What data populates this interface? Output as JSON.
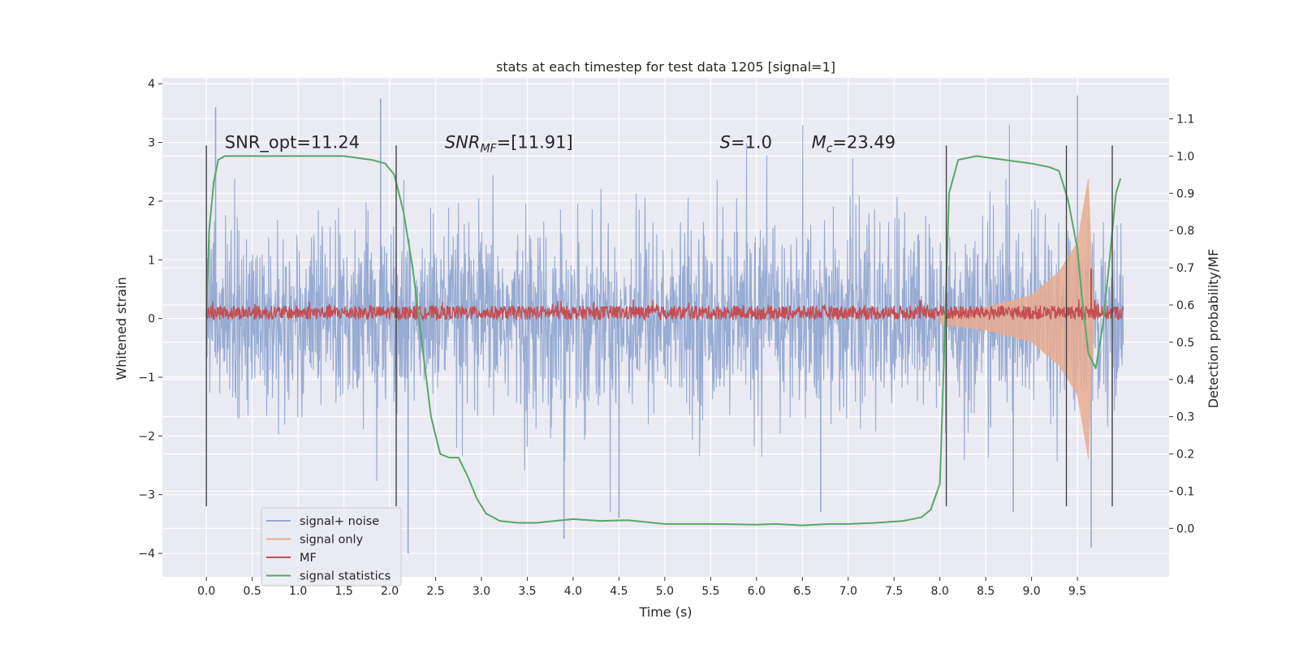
{
  "chart_data": {
    "type": "line",
    "title": "stats at each timestep for test data 1205 [signal=1]",
    "xlabel": "Time (s)",
    "ylabel": "Whitened strain",
    "y2label": "Detection probability/MF",
    "xlim": [
      -0.48,
      10.5
    ],
    "ylim": [
      -4.4,
      4.1
    ],
    "y2lim": [
      -0.13,
      1.21
    ],
    "xticks": [
      0.0,
      0.5,
      1.0,
      1.5,
      2.0,
      2.5,
      3.0,
      3.5,
      4.0,
      4.5,
      5.0,
      5.5,
      6.0,
      6.5,
      7.0,
      7.5,
      8.0,
      8.5,
      9.0,
      9.5
    ],
    "xtick_labels": [
      "0.0",
      "0.5",
      "1.0",
      "1.5",
      "2.0",
      "2.5",
      "3.0",
      "3.5",
      "4.0",
      "4.5",
      "5.0",
      "5.5",
      "6.0",
      "6.5",
      "7.0",
      "7.5",
      "8.0",
      "8.5",
      "9.0",
      "9.5"
    ],
    "yticks": [
      -4,
      -3,
      -2,
      -1,
      0,
      1,
      2,
      3,
      4
    ],
    "ytick_labels": [
      "−4",
      "−3",
      "−2",
      "−1",
      "0",
      "1",
      "2",
      "3",
      "4"
    ],
    "y2ticks": [
      0.0,
      0.1,
      0.2,
      0.3,
      0.4,
      0.5,
      0.6,
      0.7,
      0.8,
      0.9,
      1.0,
      1.1
    ],
    "y2tick_labels": [
      "0.0",
      "0.1",
      "0.2",
      "0.3",
      "0.4",
      "0.5",
      "0.6",
      "0.7",
      "0.8",
      "0.9",
      "1.0",
      "1.1"
    ],
    "grid": true,
    "legend_position": "lower-left",
    "annotations": [
      {
        "id": "snr-opt",
        "text": "SNR_opt=11.24",
        "x": 0.2,
        "y": 3.0
      },
      {
        "id": "snr-mf",
        "base": "SNR",
        "sub": "MF",
        "rest": "=[11.91]",
        "x": 2.6,
        "y": 3.0
      },
      {
        "id": "s-value",
        "base": "S",
        "rest": "=1.0",
        "x": 5.6,
        "y": 3.0
      },
      {
        "id": "mc-value",
        "base": "M",
        "sub": "c",
        "rest": "=23.49",
        "x": 6.6,
        "y": 3.0
      }
    ],
    "vertical_markers": [
      {
        "x": 0.0,
        "y": [
          -3.2,
          2.95
        ]
      },
      {
        "x": 2.07,
        "y": [
          -3.2,
          2.95
        ]
      },
      {
        "x": 8.07,
        "y": [
          -3.2,
          2.95
        ]
      },
      {
        "x": 9.38,
        "y": [
          -3.2,
          2.95
        ]
      },
      {
        "x": 9.88,
        "y": [
          -3.2,
          2.95
        ]
      }
    ],
    "series": [
      {
        "name": "signal+ noise",
        "color": "#92a8d1",
        "axis": "left",
        "x_range": [
          0.0,
          10.0
        ],
        "envelope_peak": 2.0,
        "spikes": [
          [
            0.1,
            3.6
          ],
          [
            1.9,
            3.75
          ],
          [
            3.9,
            -3.75
          ],
          [
            4.5,
            -3.4
          ],
          [
            9.5,
            3.8
          ],
          [
            9.65,
            -3.9
          ],
          [
            8.8,
            -3.3
          ],
          [
            2.2,
            -4.0
          ],
          [
            6.7,
            -3.3
          ]
        ]
      },
      {
        "name": "signal only",
        "color": "#e8ab8f",
        "axis": "left",
        "x_range": [
          8.0,
          9.7
        ],
        "envelope": [
          [
            8.0,
            0.1
          ],
          [
            8.5,
            0.2
          ],
          [
            9.0,
            0.4
          ],
          [
            9.3,
            0.8
          ],
          [
            9.5,
            1.3
          ],
          [
            9.62,
            2.4
          ],
          [
            9.68,
            0.0
          ]
        ]
      },
      {
        "name": "MF",
        "color": "#c44e52",
        "axis": "left",
        "x_range": [
          0.0,
          10.0
        ],
        "baseline": 0.1,
        "amplitude": 0.12,
        "spike": [
          9.65,
          0.85
        ]
      },
      {
        "name": "signal statistics",
        "color": "#55a868",
        "axis": "right",
        "x": [
          0.0,
          0.03,
          0.08,
          0.13,
          0.2,
          0.35,
          0.6,
          1.0,
          1.5,
          1.8,
          1.95,
          2.05,
          2.15,
          2.25,
          2.35,
          2.45,
          2.55,
          2.65,
          2.75,
          2.85,
          2.95,
          3.05,
          3.2,
          3.4,
          3.6,
          3.8,
          4.0,
          4.3,
          4.6,
          5.0,
          5.5,
          6.0,
          6.2,
          6.5,
          6.8,
          7.0,
          7.3,
          7.6,
          7.8,
          7.9,
          8.0,
          8.05,
          8.1,
          8.2,
          8.4,
          8.7,
          9.0,
          9.2,
          9.3,
          9.4,
          9.5,
          9.55,
          9.62,
          9.7,
          9.78,
          9.85,
          9.92,
          9.97
        ],
        "values": [
          0.57,
          0.8,
          0.93,
          0.99,
          1.0,
          1.0,
          1.0,
          1.0,
          1.0,
          0.99,
          0.98,
          0.95,
          0.85,
          0.7,
          0.5,
          0.3,
          0.2,
          0.19,
          0.19,
          0.14,
          0.08,
          0.04,
          0.02,
          0.015,
          0.015,
          0.02,
          0.025,
          0.02,
          0.022,
          0.012,
          0.012,
          0.01,
          0.012,
          0.008,
          0.012,
          0.012,
          0.015,
          0.02,
          0.03,
          0.05,
          0.12,
          0.5,
          0.9,
          0.99,
          1.0,
          0.99,
          0.98,
          0.97,
          0.96,
          0.88,
          0.75,
          0.62,
          0.47,
          0.43,
          0.55,
          0.72,
          0.9,
          0.94
        ]
      }
    ]
  }
}
